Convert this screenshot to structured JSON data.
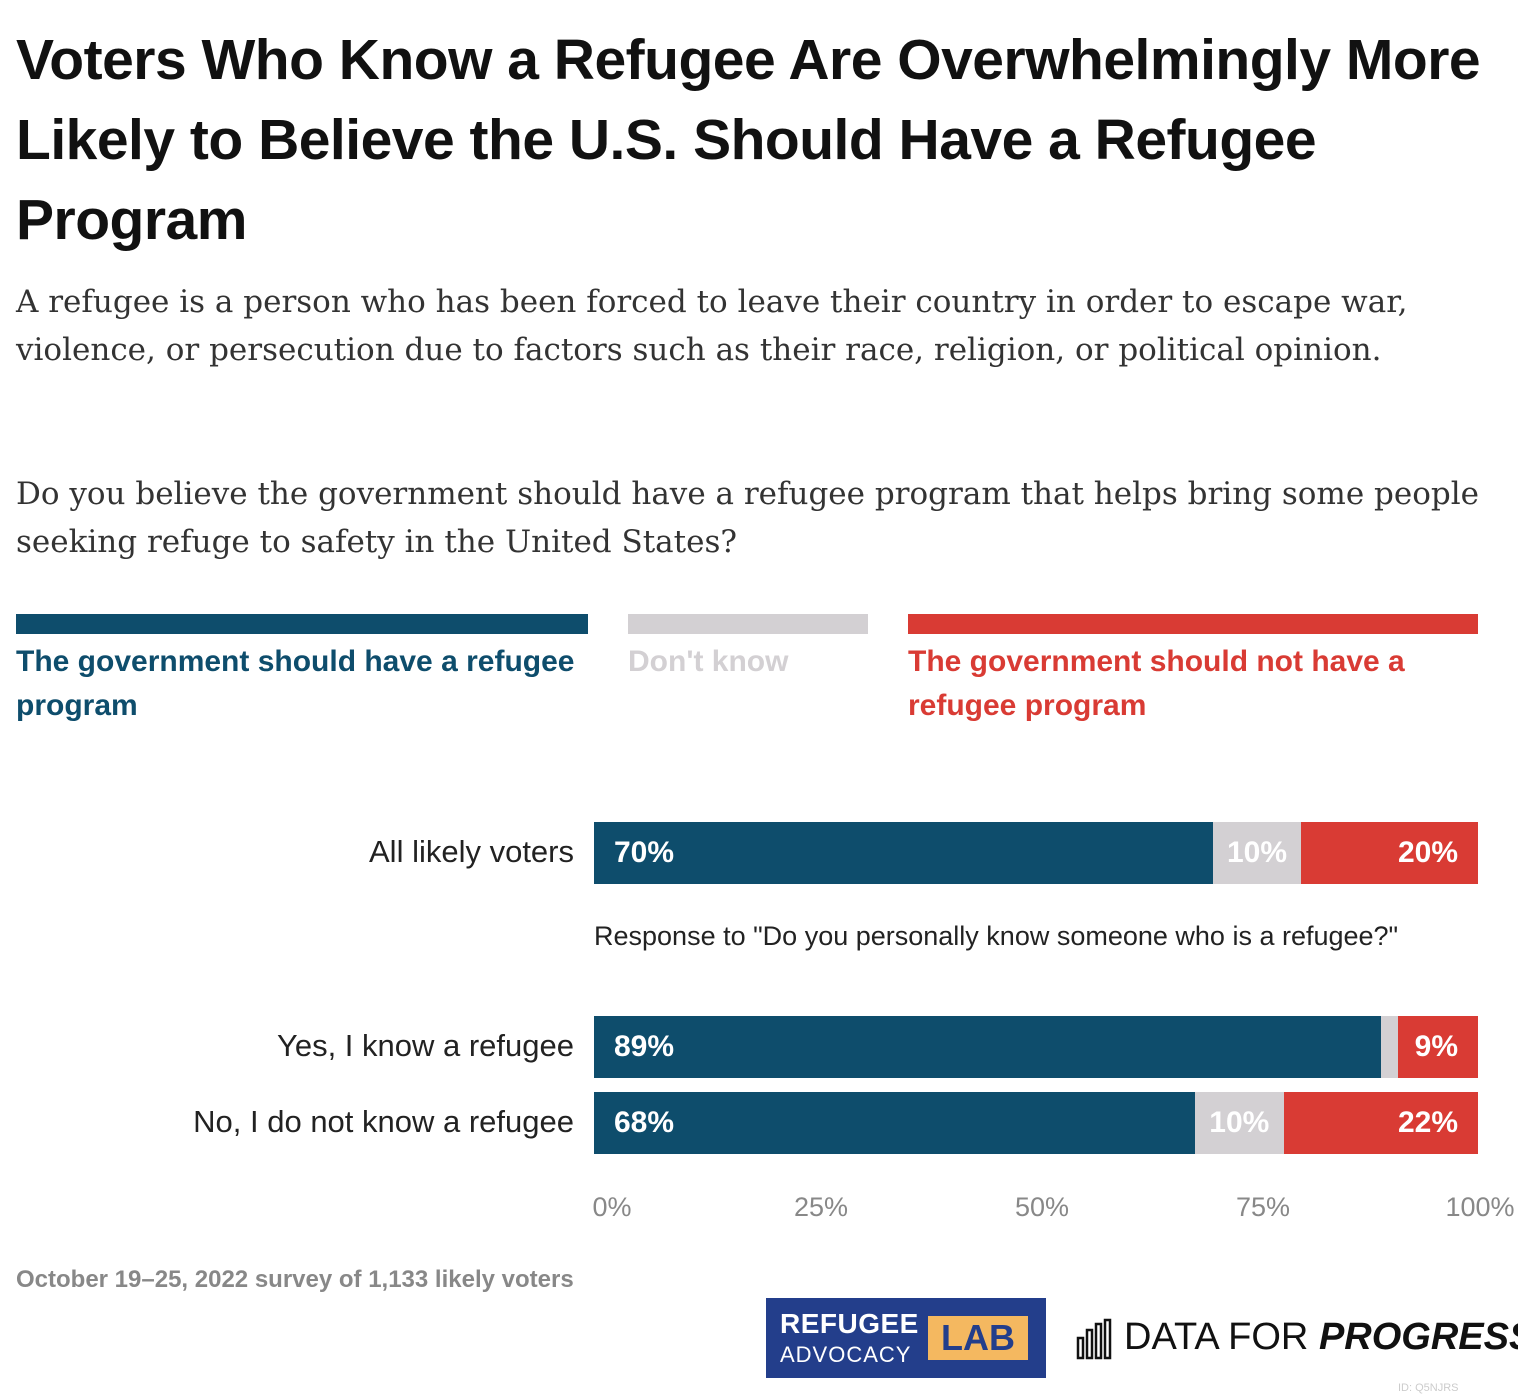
{
  "title": "Voters Who Know a Refugee Are Overwhelmingly More Likely to Believe the U.S. Should Have a Refugee Program",
  "subtitle": "A refugee is a person who has been forced to leave their country in order to escape war, violence, or persecution due to factors such as their race, religion, or political opinion.",
  "question": "Do you believe the government should have a refugee program that helps bring some people seeking refuge to safety in the United States?",
  "note": "Response to \"Do you personally know someone who is a refugee?\"",
  "source": "October 19–25, 2022 survey of 1,133 likely voters",
  "logos": {
    "refugee_lab_line1": "REFUGEE",
    "refugee_lab_line2": "ADVOCACY",
    "refugee_lab_badge": "LAB",
    "dfp_prefix": "DATA FOR ",
    "dfp_bold": "PROGRESS"
  },
  "chart_id": "ID: Q5NJRS",
  "colors": {
    "should": "#0e4d6c",
    "dont_know": "#d3d0d3",
    "should_not": "#d93b34"
  },
  "chart_data": {
    "type": "bar",
    "orientation": "horizontal",
    "stacked": true,
    "categories": [
      "All likely voters",
      "Yes, I know a refugee",
      "No, I do not know a refugee"
    ],
    "series": [
      {
        "name": "The government should have a refugee program",
        "values": [
          70,
          89,
          68
        ],
        "labels": [
          "70%",
          "89%",
          "68%"
        ]
      },
      {
        "name": "Don't know",
        "values": [
          10,
          2,
          10
        ],
        "labels": [
          "10%",
          "",
          "10%"
        ]
      },
      {
        "name": "The government should not have a refugee program",
        "values": [
          20,
          9,
          22
        ],
        "labels": [
          "20%",
          "9%",
          "22%"
        ]
      }
    ],
    "xlim": [
      0,
      100
    ],
    "x_ticks": [
      "0%",
      "25%",
      "50%",
      "75%",
      "100%"
    ],
    "legend": "top",
    "grid": false
  }
}
